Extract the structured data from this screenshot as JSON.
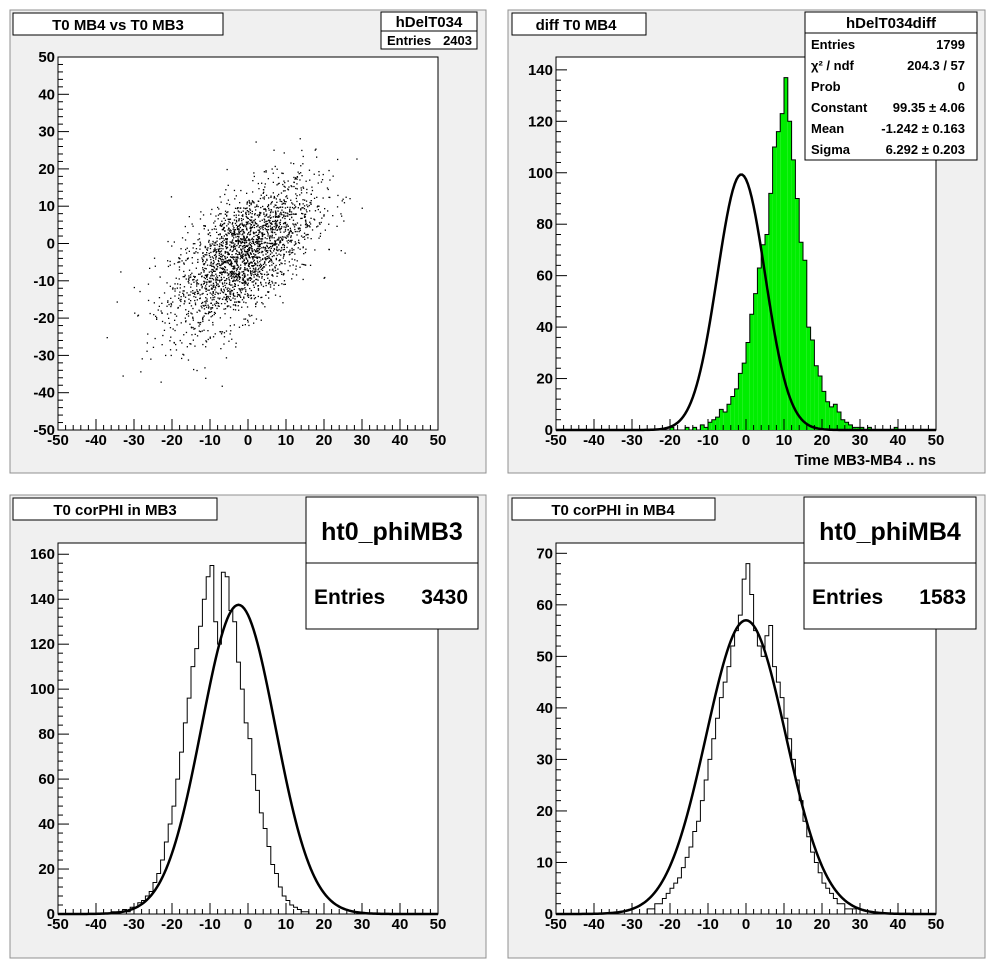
{
  "colors": {
    "pad_background": "#f0f0f0",
    "frame_background": "#ffffff",
    "histogram_fill": "#00ee00",
    "line": "#000000"
  },
  "chart_data": [
    {
      "type": "scatter",
      "title": "T0 MB4 vs T0 MB3",
      "xlabel": "",
      "ylabel": "",
      "xlim": [
        -50,
        50
      ],
      "ylim": [
        -50,
        50
      ],
      "x_ticks": [
        -50,
        -40,
        -30,
        -20,
        -10,
        0,
        10,
        20,
        30,
        40,
        50
      ],
      "y_ticks": [
        -50,
        -40,
        -30,
        -20,
        -10,
        0,
        10,
        20,
        30,
        40,
        50
      ],
      "x_tick_labels": [
        "-50",
        "-40",
        "-30",
        "-20",
        "-10",
        "0",
        "10",
        "20",
        "30",
        "40",
        "50"
      ],
      "y_tick_labels": [
        "-50",
        "-40",
        "-30",
        "-20",
        "-10",
        "0",
        "10",
        "20",
        "30",
        "40",
        "50"
      ],
      "stats": {
        "name": "hDelT034",
        "rows": [
          {
            "label": "Entries",
            "value": "2403"
          }
        ]
      },
      "correlation": 0.62,
      "x_mean": -1.5,
      "x_sigma": 9.5,
      "y_mean": -3.0,
      "y_sigma": 10.0,
      "points_plotted": 2403
    },
    {
      "type": "bar",
      "title": "diff T0 MB4",
      "xlabel": "Time MB3-MB4  ..  ns",
      "ylabel": "",
      "xlim": [
        -50,
        50
      ],
      "ylim": [
        0,
        145
      ],
      "x_ticks": [
        -50,
        -40,
        -30,
        -20,
        -10,
        0,
        10,
        20,
        30,
        40,
        50
      ],
      "y_ticks": [
        0,
        20,
        40,
        60,
        80,
        100,
        120,
        140
      ],
      "x_tick_labels": [
        "-50",
        "-40",
        "-30",
        "-20",
        "-10",
        "0",
        "10",
        "20",
        "30",
        "40",
        "50"
      ],
      "y_tick_labels": [
        "0",
        "20",
        "40",
        "60",
        "80",
        "100",
        "120",
        "140"
      ],
      "bin_width": 1,
      "bin_start": -50,
      "values": [
        0,
        0,
        0,
        0,
        0,
        0,
        0,
        0,
        0,
        0,
        0,
        0,
        0,
        0,
        0,
        0,
        0,
        0,
        0,
        0,
        0,
        0,
        0,
        0,
        0,
        0,
        0,
        0,
        0,
        0,
        1,
        0,
        0,
        0,
        1,
        0,
        1,
        0,
        2,
        1,
        3,
        4,
        5,
        8,
        7,
        10,
        13,
        16,
        22,
        26,
        34,
        45,
        53,
        63,
        72,
        76,
        92,
        110,
        116,
        123,
        137,
        120,
        105,
        90,
        73,
        66,
        40,
        35,
        25,
        21,
        15,
        11,
        9,
        10,
        7,
        4,
        3,
        2,
        1,
        1,
        1,
        0,
        1,
        0,
        0,
        0,
        0,
        0,
        0,
        1,
        0,
        0,
        0,
        0,
        0,
        0,
        0,
        0,
        0,
        0
      ],
      "fit": {
        "type": "gaussian",
        "constant": 99.35,
        "mean": -1.242,
        "sigma": 6.292
      },
      "stats": {
        "name": "hDelT034diff",
        "rows": [
          {
            "label": "Entries",
            "value": "1799"
          },
          {
            "label": "χ² / ndf",
            "value": "204.3 / 57"
          },
          {
            "label": "Prob",
            "value": "0"
          },
          {
            "label": "Constant",
            "value": "99.35 ± 4.06"
          },
          {
            "label": "Mean",
            "value": "-1.242 ± 0.163"
          },
          {
            "label": "Sigma",
            "value": "6.292 ± 0.203"
          }
        ]
      }
    },
    {
      "type": "bar",
      "title": "T0 corPHI in MB3",
      "xlabel": "",
      "ylabel": "",
      "xlim": [
        -50,
        50
      ],
      "ylim": [
        0,
        165
      ],
      "x_ticks": [
        -50,
        -40,
        -30,
        -20,
        -10,
        0,
        10,
        20,
        30,
        40,
        50
      ],
      "y_ticks": [
        0,
        20,
        40,
        60,
        80,
        100,
        120,
        140,
        160
      ],
      "x_tick_labels": [
        "-50",
        "-40",
        "-30",
        "-20",
        "-10",
        "0",
        "10",
        "20",
        "30",
        "40",
        "50"
      ],
      "y_tick_labels": [
        "0",
        "20",
        "40",
        "60",
        "80",
        "100",
        "120",
        "140",
        "160"
      ],
      "bin_width": 1,
      "bin_start": -50,
      "values": [
        0,
        0,
        0,
        0,
        0,
        0,
        0,
        0,
        0,
        0,
        0,
        0,
        0,
        0,
        1,
        1,
        1,
        2,
        1,
        3,
        3,
        5,
        6,
        8,
        10,
        14,
        18,
        24,
        32,
        40,
        48,
        60,
        72,
        85,
        96,
        110,
        118,
        128,
        140,
        150,
        155,
        130,
        120,
        152,
        150,
        135,
        130,
        112,
        100,
        85,
        78,
        62,
        55,
        45,
        38,
        30,
        22,
        18,
        12,
        8,
        6,
        4,
        3,
        2,
        1,
        1,
        0,
        0,
        0,
        0,
        0,
        0,
        0,
        0,
        0,
        0,
        0,
        0,
        0,
        0,
        0,
        0,
        0,
        0,
        0,
        0,
        0,
        0,
        0,
        0,
        0,
        0,
        0,
        0,
        0,
        0,
        0,
        0,
        0,
        0
      ],
      "fit": {
        "type": "gaussian",
        "constant": 137.5,
        "mean": -2.5,
        "sigma": 9.7
      },
      "stats": {
        "name": "ht0_phiMB3",
        "rows": [
          {
            "label": "Entries",
            "value": "3430"
          }
        ]
      }
    },
    {
      "type": "bar",
      "title": "T0 corPHI in MB4",
      "xlabel": "",
      "ylabel": "",
      "xlim": [
        -50,
        50
      ],
      "ylim": [
        0,
        72
      ],
      "x_ticks": [
        -50,
        -40,
        -30,
        -20,
        -10,
        0,
        10,
        20,
        30,
        40,
        50
      ],
      "y_ticks": [
        0,
        10,
        20,
        30,
        40,
        50,
        60,
        70
      ],
      "x_tick_labels": [
        "-50",
        "-40",
        "-30",
        "-20",
        "-10",
        "0",
        "10",
        "20",
        "30",
        "40",
        "50"
      ],
      "y_tick_labels": [
        "0",
        "10",
        "20",
        "30",
        "40",
        "50",
        "60",
        "70"
      ],
      "bin_width": 1,
      "bin_start": -50,
      "values": [
        0,
        0,
        0,
        0,
        0,
        0,
        0,
        0,
        0,
        0,
        0,
        0,
        0,
        0,
        0,
        0,
        0,
        0,
        0,
        0,
        0,
        0,
        0,
        0,
        1,
        1,
        2,
        2,
        3,
        4,
        5,
        6,
        7,
        9,
        11,
        13,
        16,
        18,
        22,
        26,
        30,
        34,
        38,
        42,
        45,
        48,
        52,
        55,
        58,
        65,
        68,
        62,
        55,
        52,
        50,
        54,
        56,
        48,
        45,
        42,
        38,
        34,
        30,
        26,
        22,
        18,
        15,
        12,
        10,
        8,
        6,
        5,
        4,
        3,
        2,
        2,
        1,
        1,
        1,
        0,
        0,
        0,
        0,
        0,
        0,
        0,
        0,
        0,
        0,
        0,
        0,
        0,
        0,
        0,
        0,
        0,
        0,
        0,
        0,
        0
      ],
      "fit": {
        "type": "gaussian",
        "constant": 57.0,
        "mean": 0.0,
        "sigma": 10.5
      },
      "stats": {
        "name": "ht0_phiMB4",
        "rows": [
          {
            "label": "Entries",
            "value": "1583"
          }
        ]
      }
    }
  ]
}
